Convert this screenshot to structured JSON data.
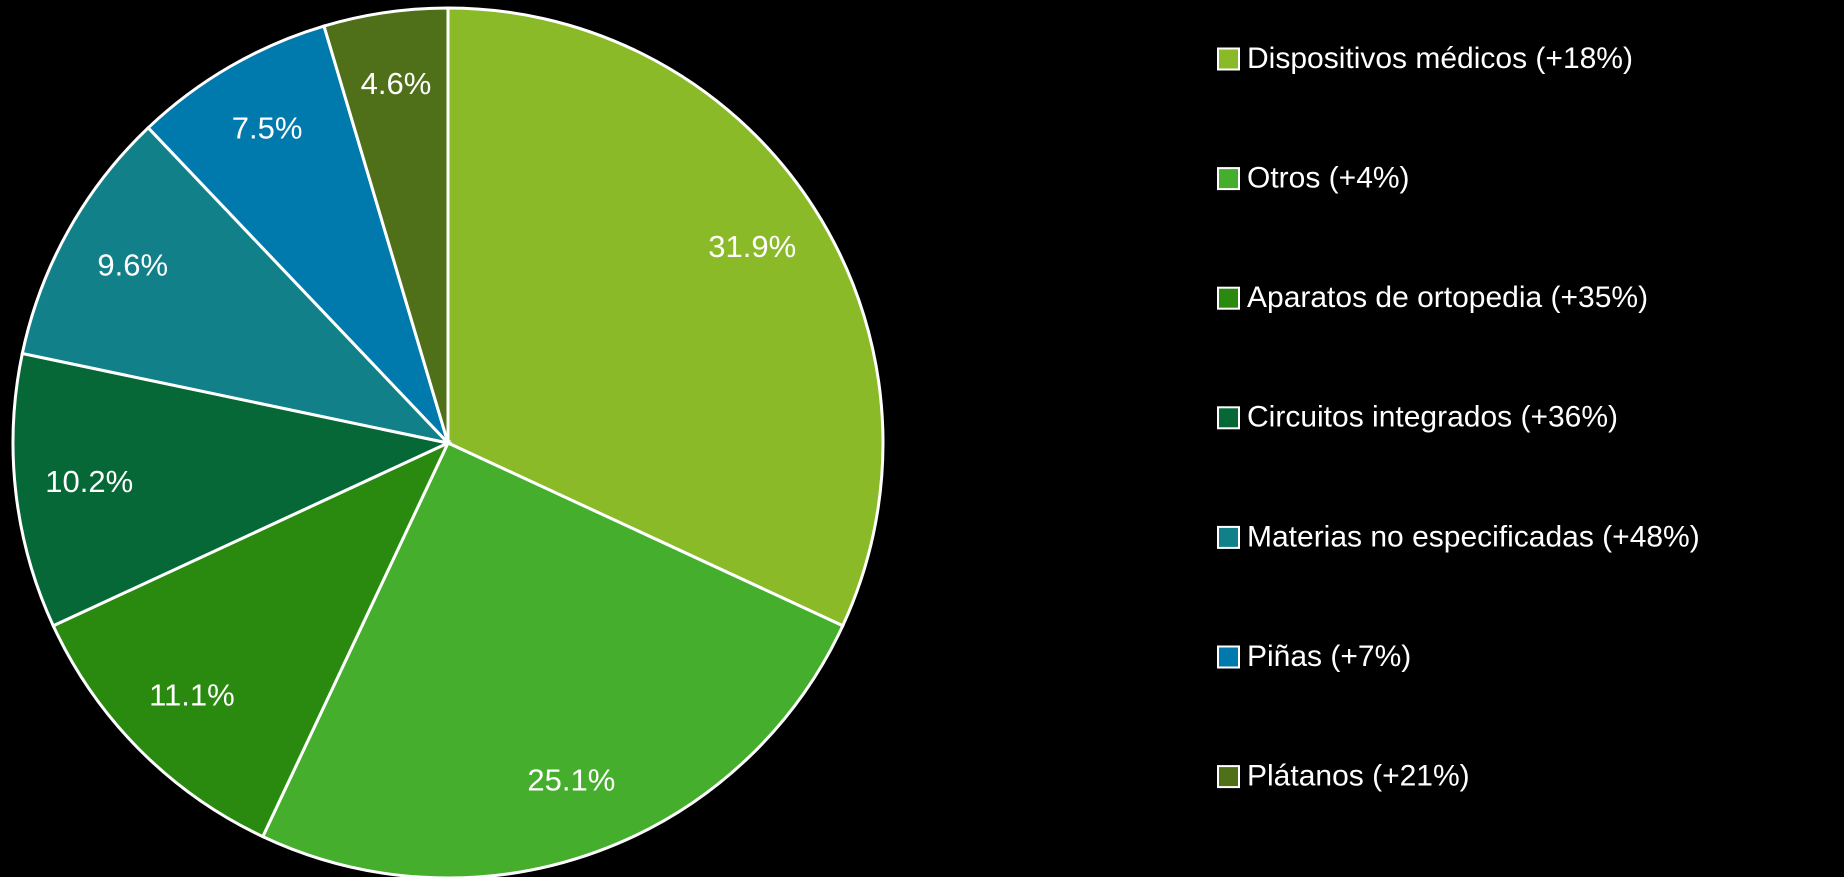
{
  "chart_data": {
    "type": "pie",
    "categories": [
      "Dispositivos médicos (+18%)",
      "Otros (+4%)",
      "Aparatos de ortopedia (+35%)",
      "Circuitos integrados (+36%)",
      "Materias no especificadas (+48%)",
      "Piñas (+7%)",
      "Plátanos (+21%)"
    ],
    "values": [
      31.9,
      25.1,
      11.1,
      10.2,
      9.6,
      7.5,
      4.6
    ],
    "value_labels": [
      "31.9%",
      "25.1%",
      "11.1%",
      "10.2%",
      "9.6%",
      "7.5%",
      "4.6%"
    ],
    "colors": [
      "#8aba28",
      "#45ae2c",
      "#2a8a10",
      "#066837",
      "#118089",
      "#0079ad",
      "#4f6f19"
    ],
    "legend": "right"
  }
}
